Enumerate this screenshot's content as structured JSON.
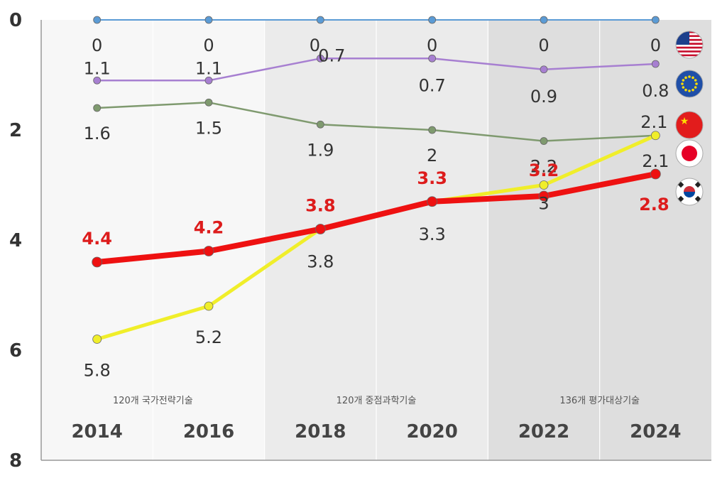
{
  "chart_data": {
    "type": "line",
    "x": [
      "2014",
      "2016",
      "2018",
      "2020",
      "2022",
      "2024"
    ],
    "ylim": [
      0,
      8
    ],
    "y_inverted": true,
    "y_ticks": [
      "0",
      "2",
      "4",
      "6",
      "8"
    ],
    "grid": true,
    "legend": "flag icons at right",
    "series": [
      {
        "key": "usa",
        "flag": "usa-flag-icon",
        "color": "#5b9bd5",
        "values": [
          0,
          0,
          0,
          0,
          0,
          0
        ],
        "labels": [
          "0",
          "0",
          "0",
          "0",
          "0",
          "0"
        ]
      },
      {
        "key": "eu",
        "flag": "eu-flag-icon",
        "color": "#a77fd1",
        "values": [
          1.1,
          1.1,
          0.7,
          0.7,
          0.9,
          0.8
        ],
        "labels": [
          "1.1",
          "1.1",
          "0.7",
          "0.7",
          "0.9",
          "0.8"
        ]
      },
      {
        "key": "japan",
        "flag": "japan-flag-icon",
        "color": "#7f9a6f",
        "values": [
          1.6,
          1.5,
          1.9,
          2,
          2.2,
          2.1
        ],
        "labels": [
          "1.6",
          "1.5",
          "1.9",
          "2",
          "2.2",
          "2.1"
        ]
      },
      {
        "key": "china",
        "flag": "china-flag-icon",
        "color": "#f0ee2a",
        "values": [
          5.8,
          5.2,
          3.8,
          3.3,
          3,
          2.1
        ],
        "labels": [
          "5.8",
          "5.2",
          "3.8",
          "3.3",
          "3",
          "2.1"
        ]
      },
      {
        "key": "korea",
        "flag": "korea-flag-icon",
        "color": "#ee1111",
        "values": [
          4.4,
          4.2,
          3.8,
          3.3,
          3.2,
          2.8
        ],
        "labels": [
          "4.4",
          "4.2",
          "3.8",
          "3.3",
          "3.2",
          "2.8"
        ]
      }
    ],
    "sections": [
      "120개 국가전략기술",
      "120개 중점과학기술",
      "136개 평가대상기술"
    ]
  }
}
